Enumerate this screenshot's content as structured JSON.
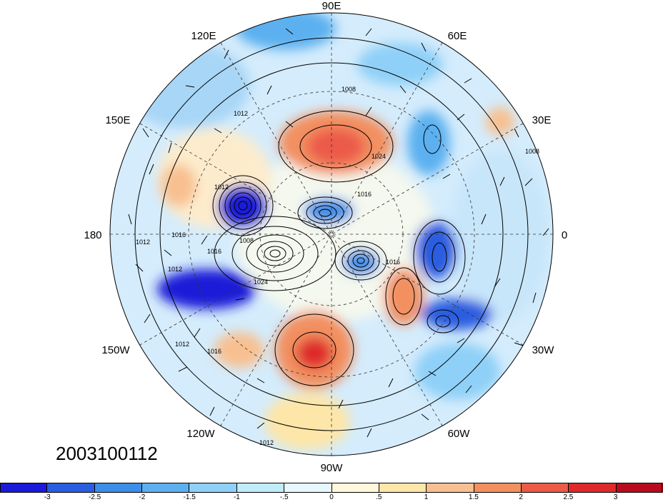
{
  "map": {
    "date_label": "2003100112",
    "longitude_labels": [
      "90E",
      "60E",
      "30E",
      "0",
      "30W",
      "60W",
      "90W",
      "150W",
      "120W",
      "180",
      "150E",
      "120E"
    ],
    "contour_labels": [
      "1008",
      "1012",
      "1016",
      "1024",
      "1008",
      "1012",
      "1016",
      "1012",
      "1016",
      "1008",
      "1024",
      "1012",
      "1016",
      "1012",
      "1016",
      "1012"
    ]
  },
  "colorbar": {
    "colors": [
      "#1a1ad8",
      "#2a5de0",
      "#3c8ee8",
      "#5cb0f0",
      "#8fd0f8",
      "#c0ecfc",
      "#e6f8fe",
      "#fff8dc",
      "#fde6a8",
      "#f8c090",
      "#f29060",
      "#ec5a48",
      "#de2a2a",
      "#b80c1e"
    ],
    "tick_labels": [
      "-3",
      "-2.5",
      "-2",
      "-1.5",
      "-1",
      "-.5",
      "0",
      ".5",
      "1",
      "1.5",
      "2",
      "2.5",
      "3"
    ]
  }
}
